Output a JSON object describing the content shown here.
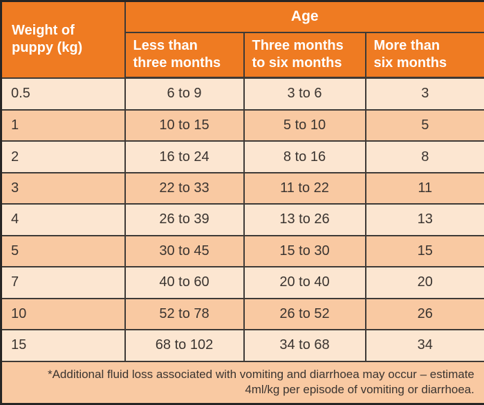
{
  "colors": {
    "header_bg": "#ef7b22",
    "header_text": "#ffffff",
    "row_light": "#fce6d1",
    "row_dark": "#f9c9a2",
    "grid": "#3d3936",
    "frame": "#272524",
    "text": "#3a3430"
  },
  "table": {
    "corner_header": "Weight of\npuppy (kg)",
    "age_header": "Age",
    "age_subheaders": [
      "Less than\nthree months",
      "Three months\nto six months",
      "More than\nsix months"
    ],
    "rows": [
      {
        "weight": "0.5",
        "less_than_three_months": "6 to 9",
        "three_to_six_months": "3 to 6",
        "more_than_six_months": "3"
      },
      {
        "weight": "1",
        "less_than_three_months": "10 to 15",
        "three_to_six_months": "5 to 10",
        "more_than_six_months": "5"
      },
      {
        "weight": "2",
        "less_than_three_months": "16 to 24",
        "three_to_six_months": "8 to 16",
        "more_than_six_months": "8"
      },
      {
        "weight": "3",
        "less_than_three_months": "22 to 33",
        "three_to_six_months": "11 to 22",
        "more_than_six_months": "11"
      },
      {
        "weight": "4",
        "less_than_three_months": "26 to 39",
        "three_to_six_months": "13 to 26",
        "more_than_six_months": "13"
      },
      {
        "weight": "5",
        "less_than_three_months": "30 to 45",
        "three_to_six_months": "15 to 30",
        "more_than_six_months": "15"
      },
      {
        "weight": "7",
        "less_than_three_months": "40 to 60",
        "three_to_six_months": "20 to 40",
        "more_than_six_months": "20"
      },
      {
        "weight": "10",
        "less_than_three_months": "52 to 78",
        "three_to_six_months": "26 to 52",
        "more_than_six_months": "26"
      },
      {
        "weight": "15",
        "less_than_three_months": "68 to 102",
        "three_to_six_months": "34 to 68",
        "more_than_six_months": "34"
      }
    ],
    "footnote": "*Additional fluid loss associated with vomiting and diarrhoea may occur – estimate\n4ml/kg per episode of vomiting or diarrhoea."
  },
  "chart_data": {
    "type": "table",
    "title": "",
    "columns": [
      "Weight of puppy (kg)",
      "Age: Less than three months",
      "Age: Three months to six months",
      "Age: More than six months"
    ],
    "rows": [
      [
        "0.5",
        "6 to 9",
        "3 to 6",
        "3"
      ],
      [
        "1",
        "10 to 15",
        "5 to 10",
        "5"
      ],
      [
        "2",
        "16 to 24",
        "8 to 16",
        "8"
      ],
      [
        "3",
        "22 to 33",
        "11 to 22",
        "11"
      ],
      [
        "4",
        "26 to 39",
        "13 to 26",
        "13"
      ],
      [
        "5",
        "30 to 45",
        "15 to 30",
        "15"
      ],
      [
        "7",
        "40 to 60",
        "20 to 40",
        "20"
      ],
      [
        "10",
        "52 to 78",
        "26 to 52",
        "26"
      ],
      [
        "15",
        "68 to 102",
        "34 to 68",
        "34"
      ]
    ],
    "footnote": "*Additional fluid loss associated with vomiting and diarrhoea may occur – estimate 4ml/kg per episode of vomiting or diarrhoea."
  }
}
